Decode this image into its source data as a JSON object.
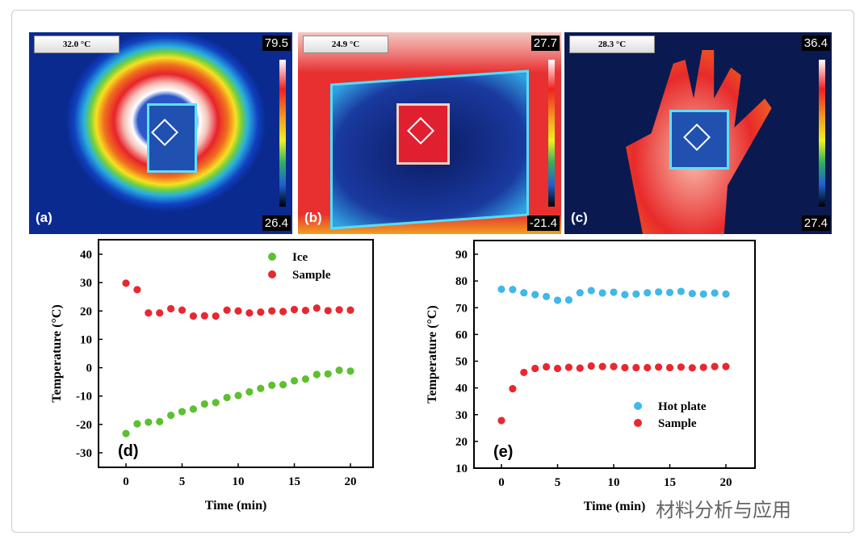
{
  "panels": [
    {
      "id": "a",
      "label": "(a)",
      "spot": "32.0 °C",
      "max": "79.5",
      "min": "26.4"
    },
    {
      "id": "b",
      "label": "(b)",
      "spot": "24.9 °C",
      "max": "27.7",
      "min": "-21.4"
    },
    {
      "id": "c",
      "label": "(c)",
      "spot": "28.3 °C",
      "max": "36.4",
      "min": "27.4"
    }
  ],
  "watermark": "材料分析与应用",
  "chart_data": [
    {
      "type": "scatter",
      "panel_label": "(d)",
      "xlabel": "Time (min)",
      "ylabel": "Temperature (°C)",
      "xlim": [
        -2,
        22
      ],
      "ylim": [
        -35,
        45
      ],
      "xticks": [
        0,
        5,
        10,
        15,
        20
      ],
      "yticks": [
        -30,
        -20,
        -10,
        0,
        10,
        20,
        30,
        40
      ],
      "legend": "top-right",
      "x": [
        0,
        1,
        2,
        3,
        4,
        5,
        6,
        7,
        8,
        9,
        10,
        11,
        12,
        13,
        14,
        15,
        16,
        17,
        18,
        19,
        20
      ],
      "series": [
        {
          "name": "Ice",
          "color": "#5cc030",
          "values": [
            -23.2,
            -19.8,
            -19.2,
            -19,
            -16.8,
            -15.5,
            -14.6,
            -12.8,
            -12.3,
            -10.5,
            -9.8,
            -8.5,
            -7.3,
            -6.2,
            -6,
            -4.6,
            -4,
            -2.4,
            -2.2,
            -0.9,
            -1.2
          ]
        },
        {
          "name": "Sample",
          "color": "#e82830",
          "values": [
            29.8,
            27.5,
            19.3,
            19.3,
            20.8,
            20.3,
            18.2,
            18.3,
            18.2,
            20.3,
            20,
            19.3,
            19.6,
            20,
            19.8,
            20.5,
            20.2,
            21,
            20.1,
            20.4,
            20.3
          ]
        }
      ]
    },
    {
      "type": "scatter",
      "panel_label": "(e)",
      "xlabel": "Time (min)",
      "ylabel": "Temperature (°C)",
      "xlim": [
        -2,
        22
      ],
      "ylim": [
        10,
        93
      ],
      "xticks": [
        0,
        5,
        10,
        15,
        20
      ],
      "yticks": [
        10,
        20,
        30,
        40,
        50,
        60,
        70,
        80,
        90
      ],
      "legend": "bottom-right",
      "x": [
        0,
        1,
        2,
        3,
        4,
        5,
        6,
        7,
        8,
        9,
        10,
        11,
        12,
        13,
        14,
        15,
        16,
        17,
        18,
        19,
        20
      ],
      "series": [
        {
          "name": "Hot plate",
          "color": "#40b8e8",
          "values": [
            76.9,
            76.8,
            75.6,
            74.9,
            74.2,
            72.8,
            72.9,
            75.6,
            76.4,
            75.5,
            75.8,
            74.9,
            75.1,
            75.6,
            75.9,
            75.7,
            76.1,
            75.3,
            75.1,
            75.5,
            75.1
          ]
        },
        {
          "name": "Sample",
          "color": "#e82830",
          "values": [
            27.8,
            39.7,
            45.8,
            47.3,
            47.9,
            47.3,
            47.7,
            47.4,
            48.2,
            48,
            48,
            47.6,
            47.6,
            47.6,
            47.8,
            47.6,
            47.8,
            47.5,
            47.7,
            48,
            48
          ]
        }
      ]
    }
  ]
}
